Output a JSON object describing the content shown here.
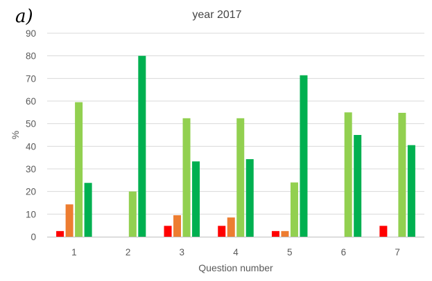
{
  "panel_label": "a)",
  "chart_data": {
    "type": "bar",
    "title": "year 2017",
    "xlabel": "Question number",
    "ylabel": "%",
    "ylim": [
      0,
      90
    ],
    "yticks": [
      0,
      10,
      20,
      30,
      40,
      50,
      60,
      70,
      80,
      90
    ],
    "grid": true,
    "legend": "none",
    "categories": [
      "1",
      "2",
      "3",
      "4",
      "5",
      "6",
      "7"
    ],
    "series": [
      {
        "color": "#ff0000",
        "values": [
          2.5,
          0,
          4.8,
          4.8,
          2.5,
          0,
          4.8
        ]
      },
      {
        "color": "#ed7d31",
        "values": [
          14.3,
          0,
          9.5,
          8.5,
          2.5,
          0,
          0
        ]
      },
      {
        "color": "#92d050",
        "values": [
          59.5,
          20,
          52.4,
          52.4,
          24,
          55,
          54.8
        ]
      },
      {
        "color": "#00b050",
        "values": [
          23.8,
          80,
          33.3,
          34.3,
          71.4,
          45,
          40.5
        ]
      }
    ]
  }
}
